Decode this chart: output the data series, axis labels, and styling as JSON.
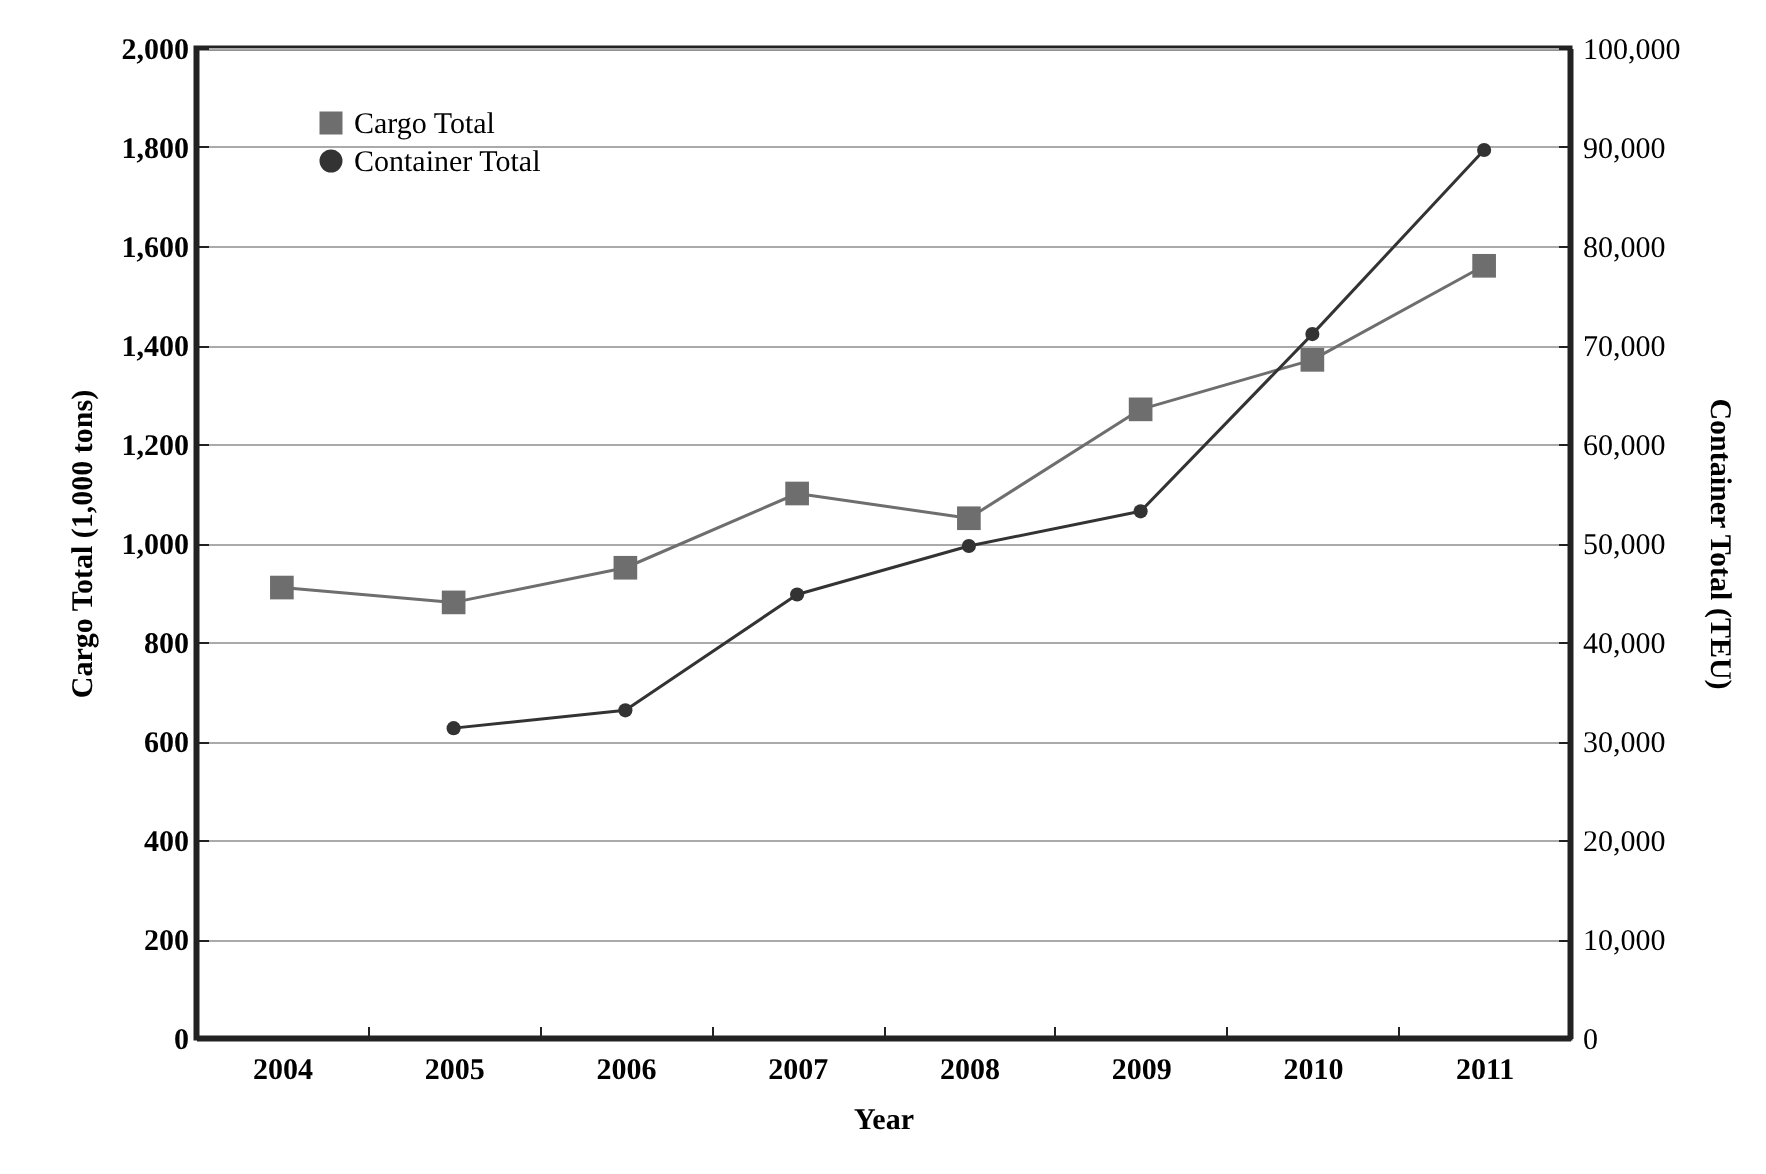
{
  "chart_data": {
    "type": "line",
    "categories": [
      "2004",
      "2005",
      "2006",
      "2007",
      "2008",
      "2009",
      "2010",
      "2011"
    ],
    "xlabel": "Year",
    "ylabel": "Cargo Total (1,000 tons)",
    "y2label": "Container Total (TEU)",
    "series": [
      {
        "name": "Cargo Total",
        "color": "#6e6e6e",
        "marker": "square",
        "values": [
          910,
          880,
          950,
          1100,
          1050,
          1270,
          1370,
          1560
        ]
      },
      {
        "name": "Container Total",
        "color": "#333333",
        "marker": "circle",
        "axis": "y2",
        "values": [
          null,
          31300,
          33100,
          44800,
          49700,
          53200,
          71100,
          89700
        ]
      }
    ],
    "ylim": [
      0,
      2000
    ],
    "yticks": [
      0,
      200,
      400,
      600,
      800,
      {
        "value": 1000,
        "label": "1,000"
      },
      {
        "value": 1200,
        "label": "1,200"
      },
      {
        "value": 1400,
        "label": "1,400"
      },
      {
        "value": 1600,
        "label": "1,600"
      },
      {
        "value": 1800,
        "label": "1,800"
      },
      {
        "value": 2000,
        "label": "2,000"
      }
    ],
    "y2lim": [
      0,
      100000
    ],
    "y2ticks": [
      0,
      {
        "value": 10000,
        "label": "10,000"
      },
      {
        "value": 20000,
        "label": "20,000"
      },
      {
        "value": 30000,
        "label": "30,000"
      },
      {
        "value": 40000,
        "label": "40,000"
      },
      {
        "value": 50000,
        "label": "50,000"
      },
      {
        "value": 60000,
        "label": "60,000"
      },
      {
        "value": 70000,
        "label": "70,000"
      },
      {
        "value": 80000,
        "label": "80,000"
      },
      {
        "value": 90000,
        "label": "90,000"
      },
      {
        "value": 100000,
        "label": "100,000"
      }
    ],
    "grid": "y",
    "legend": "top left"
  }
}
